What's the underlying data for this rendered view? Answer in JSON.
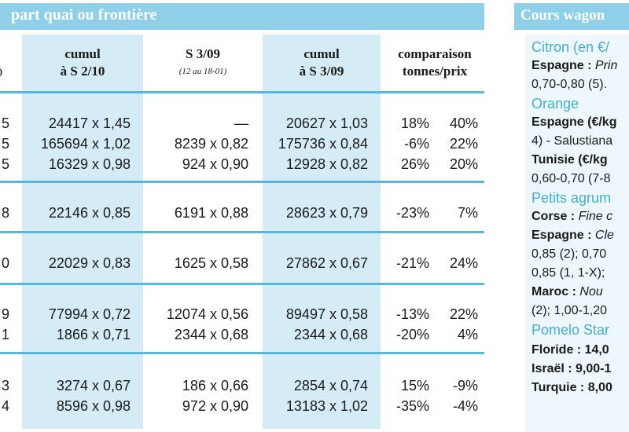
{
  "header": {
    "title": "part quai ou frontière"
  },
  "columns": [
    {
      "label": ")",
      "sub": ""
    },
    {
      "label": "cumul",
      "sub": "à S 2/10"
    },
    {
      "label": "S 3/09",
      "sub": "(12 au 18-01)"
    },
    {
      "label": "cumul",
      "sub": "à S 3/09"
    },
    {
      "label": "comparaison",
      "sub": "tonnes/prix"
    }
  ],
  "rows": [
    {
      "c0": "5",
      "c1": "24417 x 1,45",
      "c2": "—",
      "c3": "20627 x 1,03",
      "pct1": "18%",
      "pct2": "40%"
    },
    {
      "c0": "5",
      "c1": "165694 x 1,02",
      "c2": "8239 x 0,82",
      "c3": "175736 x 0,84",
      "pct1": "-6%",
      "pct2": "22%"
    },
    {
      "c0": "5",
      "c1": "16329 x 0,98",
      "c2": "924 x 0,90",
      "c3": "12928 x 0,82",
      "pct1": "26%",
      "pct2": "20%"
    },
    {
      "c0": "8",
      "c1": "22146 x 0,85",
      "c2": "6191 x 0,88",
      "c3": "28623 x 0,79",
      "pct1": "-23%",
      "pct2": "7%"
    },
    {
      "c0": "0",
      "c1": "22029 x 0,83",
      "c2": "1625 x 0,58",
      "c3": "27862 x 0,67",
      "pct1": "-21%",
      "pct2": "24%"
    },
    {
      "c0": "9",
      "c1": "77994 x 0,72",
      "c2": "12074 x 0,56",
      "c3": "89497 x 0,58",
      "pct1": "-13%",
      "pct2": "22%"
    },
    {
      "c0": "1",
      "c1": "1866 x 0,71",
      "c2": "2344 x 0,68",
      "c3": "2344 x 0,68",
      "pct1": "-20%",
      "pct2": "4%"
    },
    {
      "c0": "3",
      "c1": "3274 x 0,67",
      "c2": "186 x 0,66",
      "c3": "2854 x 0,74",
      "pct1": "15%",
      "pct2": "-9%"
    },
    {
      "c0": "4",
      "c1": "8596 x 0,98",
      "c2": "972 x 0,90",
      "c3": "13183 x 1,02",
      "pct1": "-35%",
      "pct2": "-4%"
    }
  ],
  "sidebar": {
    "title": "Cours wagon",
    "lines": [
      {
        "kind": "fruit",
        "text": "Citron (en €/"
      },
      {
        "kind": "country",
        "text": "Espagne : ",
        "italic": "Prin"
      },
      {
        "kind": "plain",
        "text": "0,70-0,80 (5)."
      },
      {
        "kind": "fruit",
        "text": "Orange"
      },
      {
        "kind": "country",
        "text": "Espagne (€/kg"
      },
      {
        "kind": "plain",
        "text": "4) - Salustiana"
      },
      {
        "kind": "country",
        "text": "Tunisie (€/kg"
      },
      {
        "kind": "plain",
        "text": "0,60-0,70 (7-8"
      },
      {
        "kind": "fruit",
        "text": "Petits agrum"
      },
      {
        "kind": "country",
        "text": "Corse : ",
        "italic": "Fine c"
      },
      {
        "kind": "country",
        "text": "Espagne : ",
        "italic": "Cle"
      },
      {
        "kind": "plain",
        "text": "0,85 (2); 0,70"
      },
      {
        "kind": "plain",
        "text": "0,85 (1, 1-X);"
      },
      {
        "kind": "country",
        "text": "Maroc : ",
        "italic": "Nou"
      },
      {
        "kind": "plain",
        "text": "(2); 1,00-1,20"
      },
      {
        "kind": "fruit",
        "text": "Pomelo Star"
      },
      {
        "kind": "country",
        "text": "Floride : 14,0"
      },
      {
        "kind": "country",
        "text": "Israël : 9,00-1"
      },
      {
        "kind": "country",
        "text": "Turquie : 8,00"
      }
    ]
  }
}
